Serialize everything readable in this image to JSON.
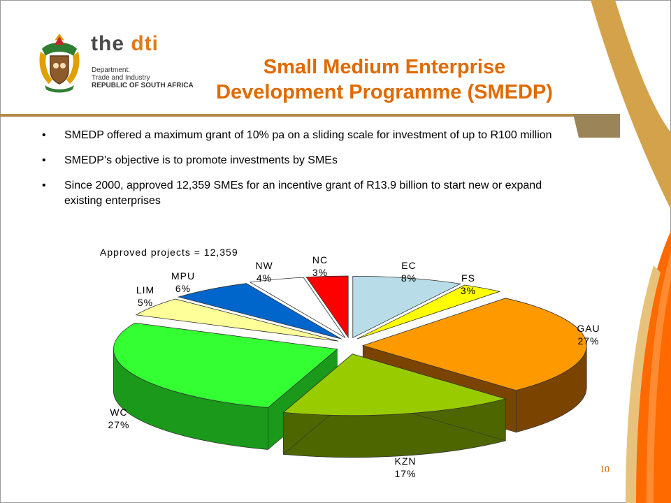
{
  "logo": {
    "brand_the": "the",
    "brand_dti": "dti",
    "dept_line1": "Department:",
    "dept_line2": "Trade and Industry",
    "dept_line3": "REPUBLIC OF SOUTH AFRICA"
  },
  "title_line1": "Small Medium Enterprise",
  "title_line2": "Development Programme (SMEDP)",
  "bullets": [
    "SMEDP offered a maximum grant of 10% pa on a sliding scale for investment of up to R100 million",
    "SMEDP’s objective is to promote investments by SMEs",
    "Since 2000, approved 12,359 SMEs for an incentive grant of R13.9 billion to start new or expand existing enterprises"
  ],
  "page_number": "10",
  "colors": {
    "title": "#e06a00",
    "accent_orange": "#ff6a00",
    "accent_gold": "#d4a24a"
  },
  "chart_data": {
    "type": "pie",
    "title": "Approved projects = 12,359",
    "slices": [
      {
        "label": "EC",
        "value": 8,
        "display": "8%",
        "color": "#b8dde8",
        "side": "#7aaab8"
      },
      {
        "label": "FS",
        "value": 3,
        "display": "3%",
        "color": "#ffff00",
        "side": "#b8b800"
      },
      {
        "label": "GAU",
        "value": 27,
        "display": "27%",
        "color": "#ff9900",
        "side": "#7a4400"
      },
      {
        "label": "KZN",
        "value": 17,
        "display": "17%",
        "color": "#99cc00",
        "side": "#4d6600"
      },
      {
        "label": "WC",
        "value": 27,
        "display": "27%",
        "color": "#33ff33",
        "side": "#1a991a"
      },
      {
        "label": "LIM",
        "value": 5,
        "display": "5%",
        "color": "#ffff99",
        "side": "#b8b86a"
      },
      {
        "label": "MPU",
        "value": 6,
        "display": "6%",
        "color": "#0066cc",
        "side": "#003366"
      },
      {
        "label": "NW",
        "value": 4,
        "display": "4%",
        "color": "#ffffff",
        "side": "#aaaaaa"
      },
      {
        "label": "NC",
        "value": 3,
        "display": "3%",
        "color": "#ff0000",
        "side": "#8a0000"
      }
    ]
  }
}
